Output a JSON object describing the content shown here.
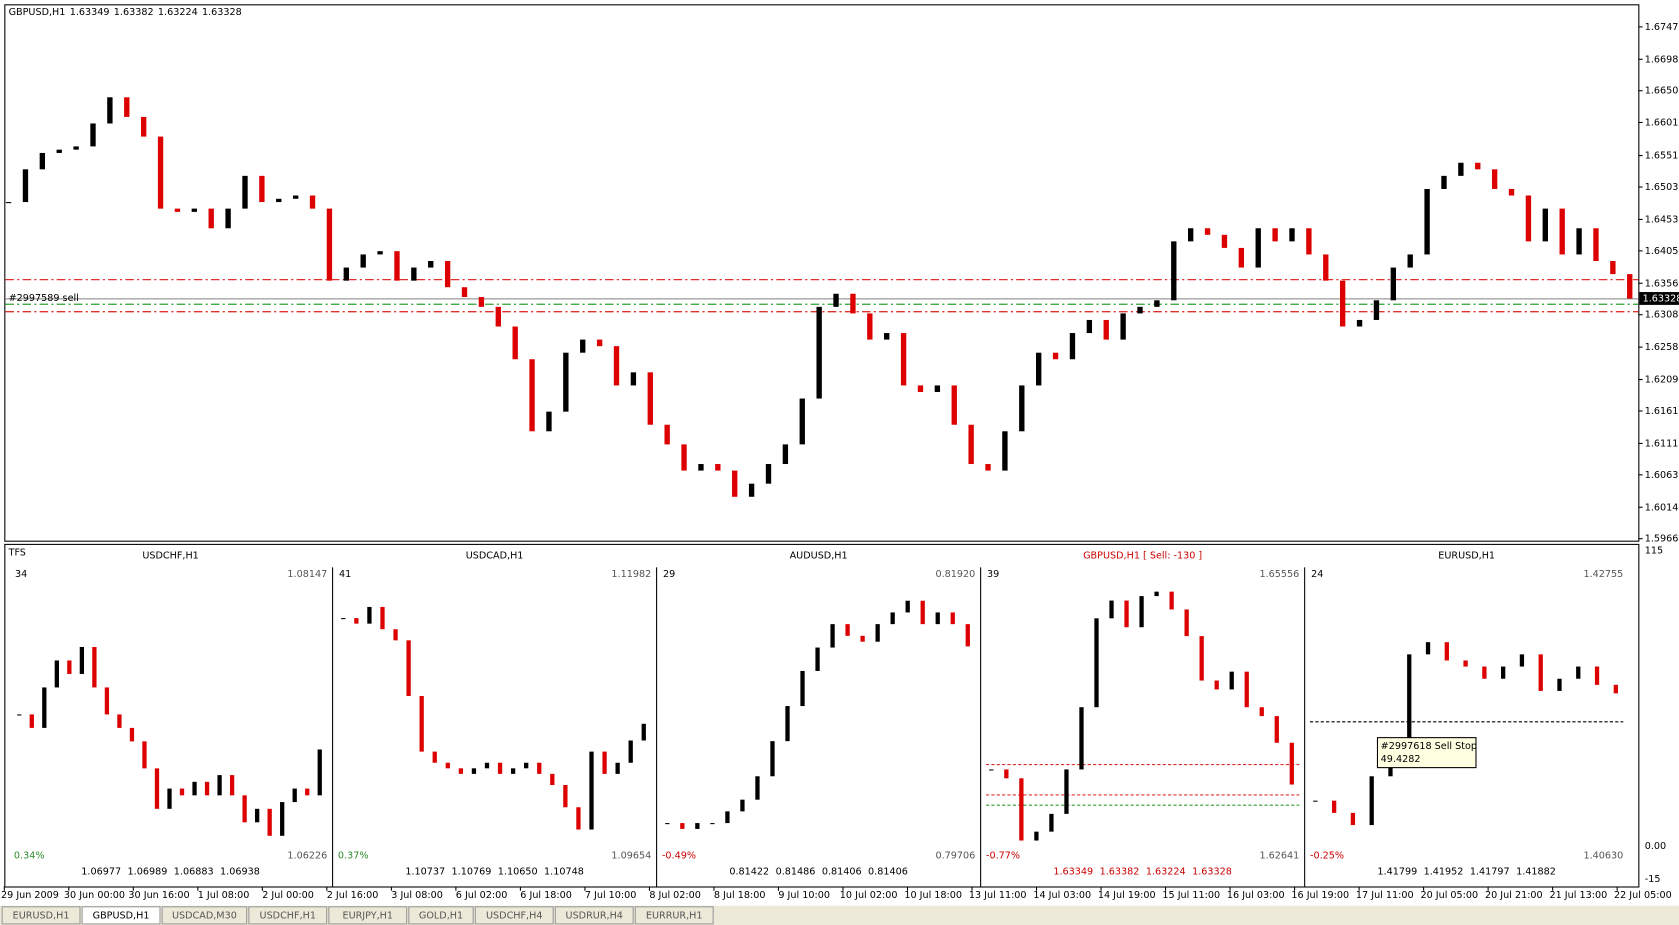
{
  "main": {
    "symbol": "GBPUSD,H1",
    "ohlc": [
      "1.63349",
      "1.63382",
      "1.63224",
      "1.63328"
    ],
    "ylim": [
      1.5963,
      1.6782
    ],
    "yticks": [
      1.67475,
      {
        "value": 1.6698,
        "label": "1.66980"
      },
      {
        "value": 1.665,
        "label": "1.66500"
      },
      1.66015,
      {
        "value": 1.6551,
        "label": "1.65510"
      },
      {
        "value": 1.6503,
        "label": "1.65030"
      },
      1.64535,
      1.64055,
      {
        "value": 1.6356,
        "label": "1.63560"
      },
      {
        "value": 1.6308,
        "label": "1.63080"
      },
      1.62585,
      {
        "value": 1.6209,
        "label": "1.62090"
      },
      {
        "value": 1.6161,
        "label": "1.61610"
      },
      1.61115,
      1.60635,
      {
        "value": 1.6014,
        "label": "1.60140"
      },
      {
        "value": 1.5966,
        "label": "1.59660"
      }
    ],
    "closes": [
      1.648,
      1.653,
      1.6555,
      1.656,
      1.6565,
      1.66,
      1.664,
      1.661,
      1.658,
      1.647,
      1.6465,
      1.647,
      1.644,
      1.647,
      1.652,
      1.648,
      1.6485,
      1.649,
      1.647,
      1.636,
      1.638,
      1.64,
      1.6405,
      1.636,
      1.638,
      1.639,
      1.635,
      1.6335,
      1.632,
      1.629,
      1.624,
      1.613,
      1.616,
      1.625,
      1.627,
      1.626,
      1.62,
      1.622,
      1.614,
      1.611,
      1.607,
      1.608,
      1.607,
      1.603,
      1.605,
      1.608,
      1.611,
      1.618,
      1.632,
      1.634,
      1.631,
      1.627,
      1.628,
      1.62,
      1.619,
      1.62,
      1.614,
      1.608,
      1.607,
      1.613,
      1.62,
      1.625,
      1.624,
      1.628,
      1.63,
      1.627,
      1.631,
      1.632,
      1.633,
      1.642,
      1.644,
      1.643,
      1.641,
      1.638,
      1.644,
      1.642,
      1.644,
      1.64,
      1.636,
      1.629,
      1.63,
      1.633,
      1.638,
      1.64,
      1.65,
      1.652,
      1.654,
      1.653,
      1.65,
      1.649,
      1.642,
      1.647,
      1.64,
      1.644,
      1.639,
      1.637,
      1.63328
    ],
    "up_color": "#000000",
    "down_color": "#dd0000",
    "levels": [
      {
        "value": 1.63616,
        "color": "#e03030"
      },
      {
        "value": 1.6324,
        "color": "#30a030"
      },
      {
        "value": 1.63126,
        "color": "#e03030"
      }
    ],
    "order": {
      "label": "#2997589 sell",
      "value": 1.63322
    },
    "bid": {
      "value": 1.63328,
      "label": "1.63328"
    }
  },
  "panel": {
    "title": "TFS",
    "axis": [
      115,
      {
        "value": 0,
        "label": "0.00"
      },
      -15
    ],
    "charts": [
      {
        "title": "USDCHF,H1",
        "count": 34,
        "ymax": 1.08147,
        "ymin": 1.06226,
        "change": "0.34%",
        "ohlc": [
          "1.06977",
          "1.06989",
          "1.06883",
          "1.06938"
        ],
        "color": "#000000",
        "change_color": "#2e8b2e",
        "closes": [
          1.072,
          1.071,
          1.074,
          1.076,
          1.075,
          1.077,
          1.074,
          1.072,
          1.071,
          1.07,
          1.068,
          1.065,
          1.0665,
          1.066,
          1.067,
          1.066,
          1.0675,
          1.066,
          1.064,
          1.065,
          1.063,
          1.0655,
          1.0665,
          1.066,
          1.0694
        ]
      },
      {
        "title": "USDCAD,H1",
        "count": 41,
        "ymax": 1.11982,
        "ymin": 1.09654,
        "change": "0.37%",
        "ohlc": [
          "1.10737",
          "1.10769",
          "1.10650",
          "1.10748"
        ],
        "color": "#000000",
        "change_color": "#2e8b2e",
        "closes": [
          1.117,
          1.1165,
          1.118,
          1.116,
          1.115,
          1.11,
          1.105,
          1.104,
          1.1035,
          1.103,
          1.1035,
          1.104,
          1.103,
          1.1035,
          1.104,
          1.103,
          1.102,
          1.1,
          1.098,
          1.105,
          1.103,
          1.104,
          1.106,
          1.1075
        ]
      },
      {
        "title": "AUDUSD,H1",
        "count": 29,
        "ymax": {
          "value": 0.8192,
          "label": "0.81920"
        },
        "ymin": 0.79706,
        "change": "-0.49%",
        "ohlc": [
          "0.81422",
          "0.81486",
          "0.81406",
          "0.81406"
        ],
        "color": "#000000",
        "change_color": "#cc0000",
        "closes": [
          0.799,
          0.7985,
          0.799,
          0.799,
          0.8,
          0.801,
          0.803,
          0.806,
          0.809,
          0.812,
          0.814,
          0.816,
          0.815,
          0.8145,
          0.816,
          0.817,
          0.818,
          0.816,
          0.817,
          0.816,
          0.8141
        ]
      },
      {
        "title": "GBPUSD,H1 [ Sell: -130 ]",
        "count": 39,
        "ymax": 1.65556,
        "ymin": 1.62641,
        "change": "-0.77%",
        "ohlc": [
          "1.63349",
          "1.63382",
          "1.63224",
          "1.63328"
        ],
        "color": "#cc0000",
        "change_color": "#cc0000",
        "closes": [
          1.635,
          1.634,
          1.627,
          1.628,
          1.63,
          1.635,
          1.642,
          1.652,
          1.654,
          1.651,
          1.6545,
          1.655,
          1.653,
          1.65,
          1.645,
          1.644,
          1.646,
          1.642,
          1.641,
          1.638,
          1.6333
        ],
        "levels": [
          {
            "value": 1.63555,
            "color": "#e03030"
          },
          {
            "value": 1.63213,
            "color": "#e03030"
          },
          {
            "value": 1.63098,
            "color": "#30a030"
          }
        ]
      },
      {
        "title": "EURUSD,H1",
        "count": 24,
        "ymax": 1.42755,
        "ymin": {
          "value": 1.4063,
          "label": "1.40630"
        },
        "change": "-0.25%",
        "ohlc": [
          "1.41799",
          "1.41952",
          "1.41797",
          "1.41882"
        ],
        "color": "#000000",
        "change_color": "#cc0000",
        "closes": [
          1.41,
          1.409,
          1.408,
          1.412,
          1.415,
          1.422,
          1.423,
          1.4215,
          1.421,
          1.42,
          1.421,
          1.422,
          1.419,
          1.42,
          1.421,
          1.4195,
          1.4188
        ],
        "levels": [
          {
            "value": 1.41647,
            "color": "#000000"
          }
        ],
        "tooltip": [
          "#2997618 Sell Stop",
          "49.4282"
        ]
      }
    ]
  },
  "dates": [
    "29 Jun 2009",
    "30 Jun 00:00",
    "30 Jun 16:00",
    "1 Jul 08:00",
    "2 Jul 00:00",
    "2 Jul 16:00",
    "3 Jul 08:00",
    "6 Jul 02:00",
    "6 Jul 18:00",
    "7 Jul 10:00",
    "8 Jul 02:00",
    "8 Jul 18:00",
    "9 Jul 10:00",
    "10 Jul 02:00",
    "10 Jul 18:00",
    "13 Jul 11:00",
    "14 Jul 03:00",
    "14 Jul 19:00",
    "15 Jul 11:00",
    "16 Jul 03:00",
    "16 Jul 19:00",
    "17 Jul 11:00",
    "20 Jul 05:00",
    "20 Jul 21:00",
    "21 Jul 13:00",
    "22 Jul 05:00"
  ],
  "tabs": [
    {
      "label": "EURUSD,H1"
    },
    {
      "label": "GBPUSD,H1",
      "active": true
    },
    {
      "label": "USDCAD,M30"
    },
    {
      "label": "USDCHF,H1"
    },
    {
      "label": "EURJPY,H1"
    },
    {
      "label": "GOLD,H1"
    },
    {
      "label": "USDCHF,H4"
    },
    {
      "label": "USDRUR,H4"
    },
    {
      "label": "EURRUR,H1"
    }
  ]
}
